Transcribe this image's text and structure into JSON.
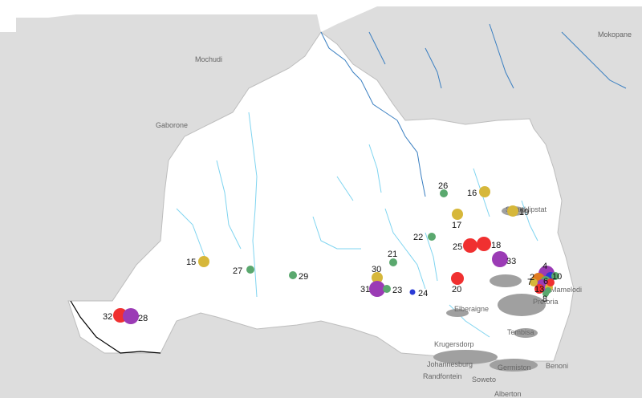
{
  "map": {
    "colors": {
      "background": "#ffffff",
      "land": "#dddddd",
      "catchment": "#ffffff",
      "border": "#bdbdbd",
      "river": "#3a7fc1",
      "stream": "#7fd4f0",
      "urban": "#a0a0a0",
      "boundary_highlight": "#000000",
      "marker_green": "#5aa86e",
      "marker_yellow": "#d6b73a",
      "marker_red": "#f03030",
      "marker_purple": "#9b3bb5",
      "marker_blue": "#2b3bd6",
      "marker_orange": "#e07a20"
    },
    "towns": [
      {
        "id": "mokopane",
        "name": "Mokopane"
      },
      {
        "id": "mochudi",
        "name": "Mochudi"
      },
      {
        "id": "gaborone",
        "name": "Gaborone"
      },
      {
        "id": "swartklipstat",
        "name": "Swartklipstat"
      },
      {
        "id": "mamelodi",
        "name": "Mamelodi"
      },
      {
        "id": "pretoria",
        "name": "Pretoria"
      },
      {
        "id": "elberaigne",
        "name": "Elberaigne"
      },
      {
        "id": "tembisa",
        "name": "Tembisa"
      },
      {
        "id": "krugersdorp",
        "name": "Krugersdorp"
      },
      {
        "id": "johannesburg",
        "name": "Johannesburg"
      },
      {
        "id": "germiston",
        "name": "Germiston"
      },
      {
        "id": "benoni",
        "name": "Benoni"
      },
      {
        "id": "randfontein",
        "name": "Randfontein"
      },
      {
        "id": "soweto",
        "name": "Soweto"
      },
      {
        "id": "alberton",
        "name": "Alberton"
      }
    ],
    "markers": [
      {
        "id": "m1",
        "label": "1",
        "color": "marker_red"
      },
      {
        "id": "m2",
        "label": "2",
        "color": "marker_orange"
      },
      {
        "id": "m3",
        "label": "3",
        "color": "marker_purple"
      },
      {
        "id": "m4",
        "label": "4",
        "color": "marker_purple"
      },
      {
        "id": "m5",
        "label": "5",
        "color": "marker_green"
      },
      {
        "id": "m6",
        "label": "6",
        "color": "marker_green"
      },
      {
        "id": "m7",
        "label": "7",
        "color": "marker_yellow"
      },
      {
        "id": "m8",
        "label": "8",
        "color": "marker_green"
      },
      {
        "id": "m9",
        "label": "9",
        "color": "marker_blue"
      },
      {
        "id": "m10",
        "label": "10",
        "color": "marker_green"
      },
      {
        "id": "m11",
        "label": "11",
        "color": "marker_red"
      },
      {
        "id": "m12",
        "label": "12",
        "color": "marker_yellow"
      },
      {
        "id": "m13",
        "label": "13",
        "color": "marker_orange"
      },
      {
        "id": "m15",
        "label": "15",
        "color": "marker_yellow"
      },
      {
        "id": "m16",
        "label": "16",
        "color": "marker_yellow"
      },
      {
        "id": "m17",
        "label": "17",
        "color": "marker_yellow"
      },
      {
        "id": "m18",
        "label": "18",
        "color": "marker_red"
      },
      {
        "id": "m19",
        "label": "19",
        "color": "marker_yellow"
      },
      {
        "id": "m20",
        "label": "20",
        "color": "marker_red"
      },
      {
        "id": "m21",
        "label": "21",
        "color": "marker_green"
      },
      {
        "id": "m22",
        "label": "22",
        "color": "marker_green"
      },
      {
        "id": "m23",
        "label": "23",
        "color": "marker_green"
      },
      {
        "id": "m24",
        "label": "24",
        "color": "marker_blue"
      },
      {
        "id": "m25",
        "label": "25",
        "color": "marker_red"
      },
      {
        "id": "m26",
        "label": "26",
        "color": "marker_green"
      },
      {
        "id": "m27",
        "label": "27",
        "color": "marker_green"
      },
      {
        "id": "m28",
        "label": "28",
        "color": "marker_purple"
      },
      {
        "id": "m29",
        "label": "29",
        "color": "marker_green"
      },
      {
        "id": "m30",
        "label": "30",
        "color": "marker_yellow"
      },
      {
        "id": "m31",
        "label": "31",
        "color": "marker_purple"
      },
      {
        "id": "m32",
        "label": "32",
        "color": "marker_red"
      },
      {
        "id": "m33",
        "label": "33",
        "color": "marker_purple"
      }
    ]
  }
}
